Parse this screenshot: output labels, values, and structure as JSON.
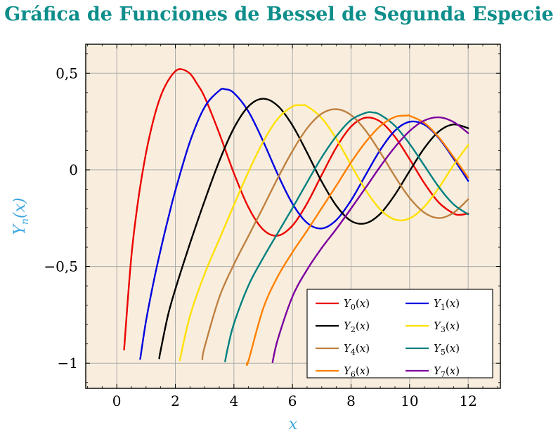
{
  "title": "Gráfica de Funciones de Bessel de Segunda Especie",
  "axis": {
    "x_label": "x",
    "y_base": "Y",
    "y_sub": "n",
    "paren_open": "(",
    "arg": "x",
    "paren_close": ")"
  },
  "colors": {
    "title": "#0d8e8b",
    "axis_label": "#3aa6df",
    "plot_bg": "#f9eedd",
    "grid": "#ababab",
    "frame": "#000000",
    "tick": "#000000",
    "tick_label": "#000000",
    "legend_bg": "#ffffff",
    "legend_border": "#000000"
  },
  "chart_data": {
    "type": "line",
    "title": "Gráfica de Funciones de Bessel de Segunda Especie",
    "xlabel": "x",
    "ylabel": "Y_n(x)",
    "xlim": [
      -1.06,
      13.1
    ],
    "ylim": [
      -1.13,
      0.65
    ],
    "grid": true,
    "legend_position": "bottom-right",
    "legend": {
      "base": "Y",
      "open": "(",
      "arg": "x",
      "close": ")",
      "columns": 2
    },
    "x_ticks": {
      "values": [
        0,
        2,
        4,
        6,
        8,
        10,
        12
      ],
      "labels": [
        "0",
        "2",
        "4",
        "6",
        "8",
        "10",
        "12"
      ]
    },
    "y_ticks": {
      "values": [
        0.5,
        0,
        -0.5,
        -1
      ],
      "labels": [
        "0,5",
        "0",
        "−0,5",
        "−1"
      ]
    },
    "x_minor_step": 0.5,
    "y_minor_step": 0.1,
    "series": [
      {
        "name": "Y_0(x)",
        "order": 0,
        "color": "#ec0000",
        "points": [
          [
            0.25,
            -0.93
          ],
          [
            0.5,
            -0.445
          ],
          [
            0.75,
            -0.137
          ],
          [
            1,
            0.088
          ],
          [
            1.25,
            0.258
          ],
          [
            1.5,
            0.382
          ],
          [
            1.75,
            0.461
          ],
          [
            2,
            0.51
          ],
          [
            2.2,
            0.521
          ],
          [
            2.5,
            0.498
          ],
          [
            2.75,
            0.443
          ],
          [
            3,
            0.377
          ],
          [
            3.5,
            0.189
          ],
          [
            4,
            -0.017
          ],
          [
            4.5,
            -0.195
          ],
          [
            5,
            -0.309
          ],
          [
            5.5,
            -0.34
          ],
          [
            6,
            -0.288
          ],
          [
            6.5,
            -0.173
          ],
          [
            7,
            -0.026
          ],
          [
            7.5,
            0.117
          ],
          [
            8,
            0.224
          ],
          [
            8.5,
            0.27
          ],
          [
            9,
            0.25
          ],
          [
            9.5,
            0.171
          ],
          [
            10,
            0.056
          ],
          [
            10.5,
            -0.068
          ],
          [
            11,
            -0.169
          ],
          [
            11.5,
            -0.225
          ],
          [
            11.75,
            -0.232
          ],
          [
            12,
            -0.225
          ]
        ]
      },
      {
        "name": "Y_1(x)",
        "order": 1,
        "color": "#0000e0",
        "points": [
          [
            0.8,
            -0.978
          ],
          [
            1,
            -0.781
          ],
          [
            1.25,
            -0.584
          ],
          [
            1.5,
            -0.412
          ],
          [
            1.75,
            -0.254
          ],
          [
            2,
            -0.107
          ],
          [
            2.5,
            0.146
          ],
          [
            3,
            0.325
          ],
          [
            3.5,
            0.41
          ],
          [
            3.7,
            0.417
          ],
          [
            4,
            0.398
          ],
          [
            4.5,
            0.301
          ],
          [
            5,
            0.148
          ],
          [
            5.5,
            -0.024
          ],
          [
            6,
            -0.175
          ],
          [
            6.5,
            -0.274
          ],
          [
            7,
            -0.303
          ],
          [
            7.5,
            -0.259
          ],
          [
            8,
            -0.158
          ],
          [
            8.5,
            -0.026
          ],
          [
            9,
            0.104
          ],
          [
            9.5,
            0.203
          ],
          [
            10,
            0.249
          ],
          [
            10.5,
            0.234
          ],
          [
            11,
            0.164
          ],
          [
            11.5,
            0.058
          ],
          [
            12,
            -0.057
          ]
        ]
      },
      {
        "name": "Y_2(x)",
        "order": 2,
        "color": "#000000",
        "points": [
          [
            1.45,
            -0.975
          ],
          [
            1.5,
            -0.932
          ],
          [
            1.75,
            -0.751
          ],
          [
            2,
            -0.617
          ],
          [
            2.5,
            -0.381
          ],
          [
            3,
            -0.16
          ],
          [
            3.5,
            0.045
          ],
          [
            4,
            0.216
          ],
          [
            4.5,
            0.329
          ],
          [
            5,
            0.368
          ],
          [
            5.5,
            0.331
          ],
          [
            6,
            0.23
          ],
          [
            6.5,
            0.089
          ],
          [
            7,
            -0.061
          ],
          [
            7.5,
            -0.186
          ],
          [
            8,
            -0.264
          ],
          [
            8.5,
            -0.276
          ],
          [
            9,
            -0.227
          ],
          [
            9.5,
            -0.128
          ],
          [
            10,
            -0.006
          ],
          [
            10.5,
            0.112
          ],
          [
            11,
            0.199
          ],
          [
            11.5,
            0.235
          ],
          [
            12,
            0.216
          ]
        ]
      },
      {
        "name": "Y_3(x)",
        "order": 3,
        "color": "#ffe000",
        "points": [
          [
            2.15,
            -0.985
          ],
          [
            2.5,
            -0.756
          ],
          [
            3,
            -0.538
          ],
          [
            3.5,
            -0.359
          ],
          [
            4,
            -0.182
          ],
          [
            4.5,
            -0.009
          ],
          [
            5,
            0.146
          ],
          [
            5.5,
            0.265
          ],
          [
            6,
            0.328
          ],
          [
            6.3,
            0.334
          ],
          [
            6.5,
            0.329
          ],
          [
            7,
            0.268
          ],
          [
            7.5,
            0.16
          ],
          [
            8,
            0.026
          ],
          [
            8.5,
            -0.104
          ],
          [
            9,
            -0.205
          ],
          [
            9.5,
            -0.257
          ],
          [
            10,
            -0.251
          ],
          [
            10.5,
            -0.191
          ],
          [
            11,
            -0.092
          ],
          [
            11.5,
            0.024
          ],
          [
            12,
            0.129
          ]
        ]
      },
      {
        "name": "Y_4(x)",
        "order": 4,
        "color": "#bf8040",
        "points": [
          [
            2.92,
            -0.98
          ],
          [
            3,
            -0.916
          ],
          [
            3.5,
            -0.66
          ],
          [
            4,
            -0.489
          ],
          [
            4.5,
            -0.341
          ],
          [
            5,
            -0.193
          ],
          [
            5.5,
            -0.042
          ],
          [
            6,
            0.098
          ],
          [
            6.5,
            0.215
          ],
          [
            7,
            0.291
          ],
          [
            7.5,
            0.314
          ],
          [
            8,
            0.284
          ],
          [
            8.5,
            0.203
          ],
          [
            9,
            0.09
          ],
          [
            9.5,
            -0.034
          ],
          [
            10,
            -0.145
          ],
          [
            10.5,
            -0.221
          ],
          [
            11,
            -0.249
          ],
          [
            11.5,
            -0.222
          ],
          [
            12,
            -0.152
          ]
        ]
      },
      {
        "name": "Y_5(x)",
        "order": 5,
        "color": "#008080",
        "points": [
          [
            3.7,
            -0.99
          ],
          [
            3.8,
            -0.915
          ],
          [
            4,
            -0.796
          ],
          [
            4.5,
            -0.597
          ],
          [
            5,
            -0.455
          ],
          [
            5.5,
            -0.326
          ],
          [
            6,
            -0.197
          ],
          [
            6.5,
            -0.064
          ],
          [
            7,
            0.065
          ],
          [
            7.5,
            0.175
          ],
          [
            8,
            0.258
          ],
          [
            8.5,
            0.295
          ],
          [
            8.75,
            0.297
          ],
          [
            9,
            0.285
          ],
          [
            9.5,
            0.228
          ],
          [
            10,
            0.135
          ],
          [
            10.5,
            0.023
          ],
          [
            11,
            -0.089
          ],
          [
            11.5,
            -0.178
          ],
          [
            12,
            -0.23
          ]
        ]
      },
      {
        "name": "Y_6(x)",
        "order": 6,
        "color": "#ff8000",
        "points": [
          [
            4.45,
            -0.998
          ],
          [
            4.5,
            -0.986
          ],
          [
            5,
            -0.717
          ],
          [
            5.5,
            -0.551
          ],
          [
            6,
            -0.426
          ],
          [
            6.5,
            -0.314
          ],
          [
            7,
            -0.198
          ],
          [
            7.5,
            -0.081
          ],
          [
            8,
            0.039
          ],
          [
            8.5,
            0.144
          ],
          [
            9,
            0.227
          ],
          [
            9.5,
            0.274
          ],
          [
            9.9,
            0.281
          ],
          [
            10,
            0.28
          ],
          [
            10.5,
            0.243
          ],
          [
            11,
            0.168
          ],
          [
            11.5,
            0.067
          ],
          [
            12,
            -0.04
          ]
        ]
      },
      {
        "name": "Y_7(x)",
        "order": 7,
        "color": "#7c00a0",
        "points": [
          [
            5.32,
            -0.995
          ],
          [
            5.5,
            -0.876
          ],
          [
            6,
            -0.655
          ],
          [
            6.5,
            -0.516
          ],
          [
            7,
            -0.404
          ],
          [
            7.5,
            -0.305
          ],
          [
            8,
            -0.2
          ],
          [
            8.5,
            -0.092
          ],
          [
            9,
            0.018
          ],
          [
            9.5,
            0.118
          ],
          [
            10,
            0.201
          ],
          [
            10.5,
            0.255
          ],
          [
            11,
            0.272
          ],
          [
            11.5,
            0.248
          ],
          [
            12,
            0.19
          ]
        ]
      }
    ]
  }
}
